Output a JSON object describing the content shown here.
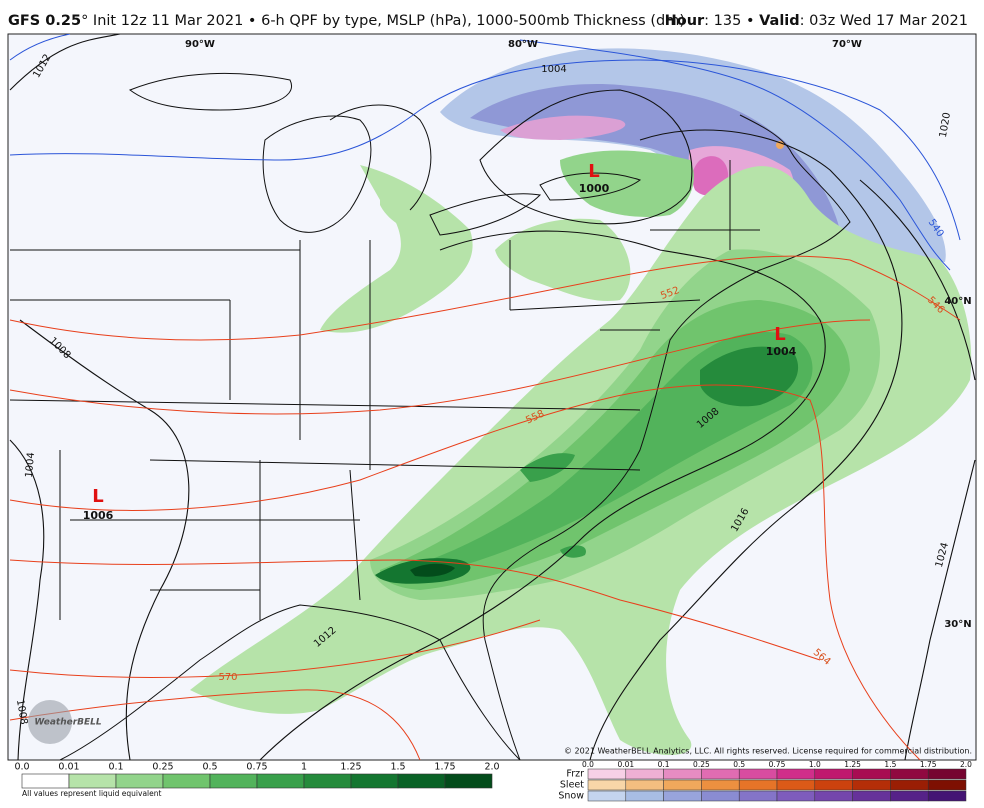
{
  "header": {
    "title_parts": [
      "GFS 0.25",
      "° Init 12z 11 Mar 2021 • 6-h QPF by type, MSLP (hPa), 1000-500mb Thickness (dm)"
    ],
    "valid_parts": [
      "Hour",
      ": 135 • ",
      "Valid",
      ": 03z Wed 17 Mar 2021"
    ]
  },
  "map": {
    "longitudes": [
      "90°W",
      "80°W",
      "70°W"
    ],
    "latitudes": [
      "40°N",
      "30°N"
    ],
    "lows": [
      {
        "symbol": "L",
        "pressure": "1000"
      },
      {
        "symbol": "L",
        "pressure": "1004"
      },
      {
        "symbol": "L",
        "pressure": "1006"
      }
    ],
    "isobar_labels": [
      "1012",
      "1004",
      "1008",
      "1020",
      "1008",
      "1004",
      "1016",
      "1024",
      "1012",
      "1008"
    ],
    "thickness_labels": [
      "540",
      "546",
      "552",
      "558",
      "564",
      "570"
    ],
    "copyright": "© 2021 WeatherBELL Analytics, LLC. All rights reserved. License required for commercial distribution.",
    "logo": "WeatherBELL"
  },
  "legend": {
    "rain": {
      "ticks": [
        "0.0",
        "0.01",
        "0.1",
        "0.25",
        "0.5",
        "0.75",
        "1",
        "1.25",
        "1.5",
        "1.75",
        "2.0"
      ],
      "colors": [
        "#ffffff",
        "#b6e3a9",
        "#92d48b",
        "#70c46d",
        "#52b35b",
        "#39a04b",
        "#258b3c",
        "#147630",
        "#096226",
        "#034c1b"
      ],
      "note": "All values represent liquid equivalent"
    },
    "mixed": {
      "ticks": [
        "0.0",
        "0.01",
        "0.1",
        "0.25",
        "0.5",
        "0.75",
        "1.0",
        "1.25",
        "1.5",
        "1.75",
        "2.0"
      ],
      "rows": [
        {
          "name": "Frzr",
          "colors": [
            "#f6d0e6",
            "#eeb0d4",
            "#e68cc2",
            "#e06cb2",
            "#d84ca0",
            "#d02e8a",
            "#c0186e",
            "#a80c52",
            "#900840",
            "#760430"
          ]
        },
        {
          "name": "Sleet",
          "colors": [
            "#f8d6a8",
            "#f4be80",
            "#f0a85c",
            "#ec9040",
            "#e67428",
            "#dc5a18",
            "#cc420e",
            "#b42e08",
            "#9a1e04",
            "#7e1002"
          ]
        },
        {
          "name": "Snow",
          "colors": [
            "#c4d4ee",
            "#a8bde4",
            "#98a4dc",
            "#8a8cd2",
            "#8474c8",
            "#7e5cbc",
            "#7446ac",
            "#66329a",
            "#562288",
            "#441474"
          ]
        }
      ]
    }
  }
}
